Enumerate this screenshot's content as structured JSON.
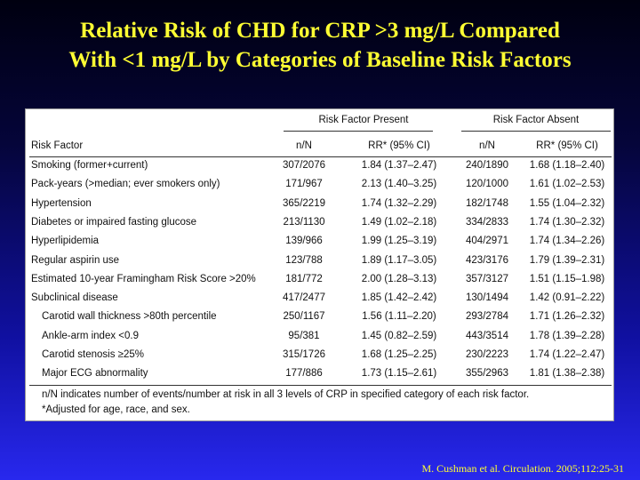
{
  "title": {
    "line1": "Relative Risk of CHD for CRP >3 mg/L Compared",
    "line2": "With <1 mg/L by Categories of Baseline Risk Factors"
  },
  "table": {
    "group_present": "Risk Factor Present",
    "group_absent": "Risk Factor Absent",
    "headers": {
      "risk_factor": "Risk Factor",
      "n_present": "n/N",
      "rr_present": "RR* (95% CI)",
      "n_absent": "n/N",
      "rr_absent": "RR* (95% CI)"
    },
    "rows": [
      {
        "factor": "Smoking (former+current)",
        "n1": "307/2076",
        "rr1": "1.84 (1.37–2.47)",
        "n2": "240/1890",
        "rr2": "1.68 (1.18–2.40)"
      },
      {
        "factor": "Pack-years (>median; ever smokers only)",
        "n1": "171/967",
        "rr1": "2.13 (1.40–3.25)",
        "n2": "120/1000",
        "rr2": "1.61 (1.02–2.53)"
      },
      {
        "factor": "Hypertension",
        "n1": "365/2219",
        "rr1": "1.74 (1.32–2.29)",
        "n2": "182/1748",
        "rr2": "1.55 (1.04–2.32)"
      },
      {
        "factor": "Diabetes or impaired fasting glucose",
        "n1": "213/1130",
        "rr1": "1.49 (1.02–2.18)",
        "n2": "334/2833",
        "rr2": "1.74 (1.30–2.32)"
      },
      {
        "factor": "Hyperlipidemia",
        "n1": "139/966",
        "rr1": "1.99 (1.25–3.19)",
        "n2": "404/2971",
        "rr2": "1.74 (1.34–2.26)"
      },
      {
        "factor": "Regular aspirin use",
        "n1": "123/788",
        "rr1": "1.89 (1.17–3.05)",
        "n2": "423/3176",
        "rr2": "1.79 (1.39–2.31)"
      },
      {
        "factor": "Estimated 10-year Framingham Risk Score >20%",
        "n1": "181/772",
        "rr1": "2.00 (1.28–3.13)",
        "n2": "357/3127",
        "rr2": "1.51 (1.15–1.98)"
      },
      {
        "factor": "Subclinical disease",
        "n1": "417/2477",
        "rr1": "1.85 (1.42–2.42)",
        "n2": "130/1494",
        "rr2": "1.42 (0.91–2.22)"
      },
      {
        "factor": "Carotid wall thickness >80th percentile",
        "n1": "250/1167",
        "rr1": "1.56 (1.11–2.20)",
        "n2": "293/2784",
        "rr2": "1.71 (1.26–2.32)"
      },
      {
        "factor": "Ankle-arm index <0.9",
        "n1": "95/381",
        "rr1": "1.45 (0.82–2.59)",
        "n2": "443/3514",
        "rr2": "1.78 (1.39–2.28)"
      },
      {
        "factor": "Carotid stenosis ≥25%",
        "n1": "315/1726",
        "rr1": "1.68 (1.25–2.25)",
        "n2": "230/2223",
        "rr2": "1.74 (1.22–2.47)"
      },
      {
        "factor": "Major ECG abnormality",
        "n1": "177/886",
        "rr1": "1.73 (1.15–2.61)",
        "n2": "355/2963",
        "rr2": "1.81 (1.38–2.38)"
      }
    ],
    "footnote1": "n/N indicates number of events/number at risk in all 3 levels of CRP in specified category of each risk factor.",
    "footnote2": "*Adjusted for age, race, and sex."
  },
  "citation": "M. Cushman et al. Circulation. 2005;112:25-31"
}
